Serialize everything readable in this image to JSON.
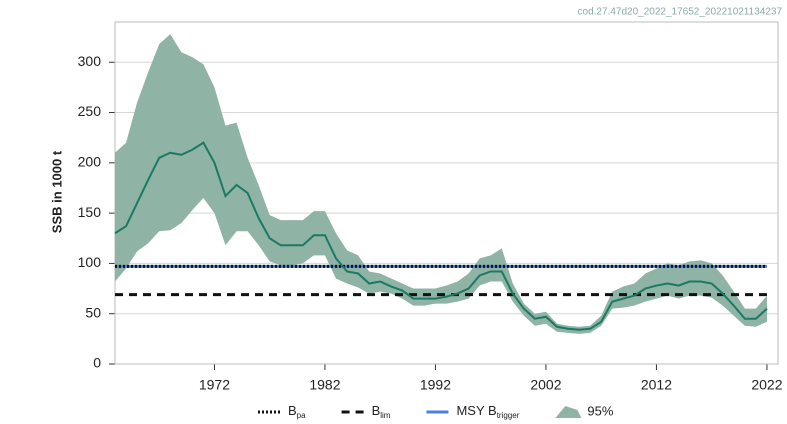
{
  "chart_data": {
    "type": "line",
    "id_label": "cod.27.47d20_2022_17652_20221021134237",
    "y_label": "SSB in 1000 t",
    "x": [
      1963,
      1964,
      1965,
      1966,
      1967,
      1968,
      1969,
      1970,
      1971,
      1972,
      1973,
      1974,
      1975,
      1976,
      1977,
      1978,
      1979,
      1980,
      1981,
      1982,
      1983,
      1984,
      1985,
      1986,
      1987,
      1988,
      1989,
      1990,
      1991,
      1992,
      1993,
      1994,
      1995,
      1996,
      1997,
      1998,
      1999,
      2000,
      2001,
      2002,
      2003,
      2004,
      2005,
      2006,
      2007,
      2008,
      2009,
      2010,
      2011,
      2012,
      2013,
      2014,
      2015,
      2016,
      2017,
      2018,
      2019,
      2020,
      2021,
      2022
    ],
    "ssb": {
      "color": "#1b7a64",
      "values": [
        130,
        137,
        160,
        183,
        205,
        210,
        208,
        213,
        220,
        200,
        167,
        178,
        170,
        145,
        125,
        118,
        118,
        118,
        128,
        128,
        105,
        92,
        90,
        80,
        82,
        77,
        73,
        65,
        65,
        65,
        67,
        70,
        75,
        88,
        92,
        92,
        70,
        55,
        45,
        47,
        37,
        35,
        34,
        35,
        42,
        62,
        65,
        68,
        75,
        78,
        80,
        78,
        82,
        82,
        80,
        70,
        58,
        45,
        45,
        55
      ]
    },
    "ci": {
      "name": "95%",
      "color": "#8fb3a5",
      "upper": [
        210,
        220,
        260,
        290,
        318,
        328,
        310,
        305,
        298,
        275,
        237,
        240,
        205,
        178,
        148,
        143,
        143,
        143,
        152,
        152,
        130,
        113,
        108,
        92,
        90,
        85,
        80,
        75,
        75,
        75,
        78,
        82,
        90,
        105,
        108,
        115,
        80,
        60,
        50,
        52,
        40,
        38,
        37,
        38,
        48,
        72,
        77,
        80,
        90,
        95,
        100,
        98,
        102,
        103,
        100,
        88,
        72,
        55,
        55,
        68
      ],
      "lower": [
        82,
        95,
        112,
        120,
        132,
        133,
        140,
        153,
        165,
        150,
        118,
        132,
        132,
        118,
        102,
        98,
        98,
        100,
        108,
        108,
        85,
        80,
        76,
        70,
        72,
        70,
        65,
        58,
        58,
        60,
        60,
        62,
        65,
        78,
        82,
        82,
        62,
        48,
        38,
        40,
        32,
        31,
        30,
        31,
        38,
        55,
        56,
        58,
        62,
        65,
        68,
        65,
        68,
        68,
        66,
        58,
        48,
        38,
        37,
        42
      ]
    },
    "reference_lines": [
      {
        "label": "MSY B",
        "sub": "trigger",
        "value": 97,
        "color": "#4a7fe0",
        "style": "solid"
      },
      {
        "label": "B",
        "sub": "pa",
        "value": 97,
        "color": "#111111",
        "style": "dotted"
      },
      {
        "label": "B",
        "sub": "lim",
        "value": 69,
        "color": "#111111",
        "style": "dashed"
      }
    ],
    "xlim": [
      1963,
      2023
    ],
    "ylim": [
      0,
      340
    ],
    "xticks": [
      1972,
      1982,
      1992,
      2002,
      2012,
      2022
    ],
    "yticks": [
      0,
      50,
      100,
      150,
      200,
      250,
      300
    ],
    "grid": true
  }
}
